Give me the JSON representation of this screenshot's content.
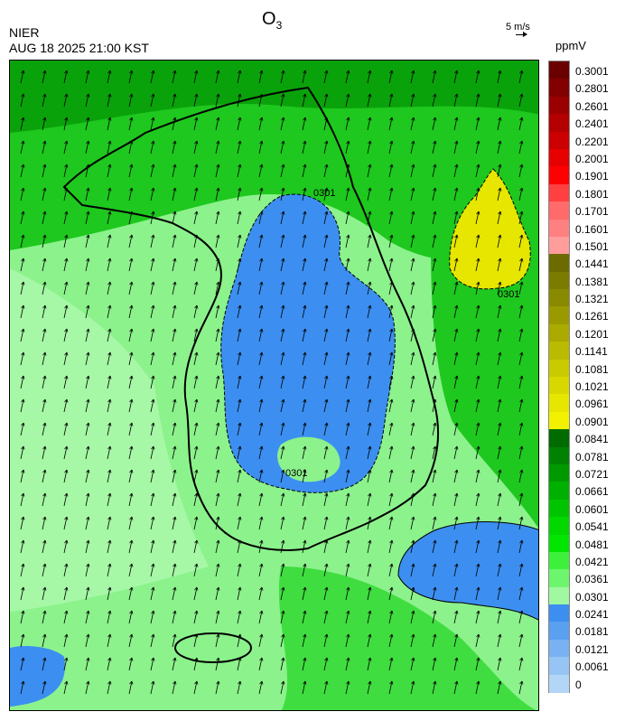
{
  "header": {
    "title": "O",
    "title_sub": "3",
    "org": "NIER",
    "timestamp": "AUG 18 2025 21:00 KST",
    "wind_scale": "5 m/s",
    "unit": "ppmV"
  },
  "contour_label": "0301",
  "legend": {
    "ticks": [
      "0.3001",
      "0.2801",
      "0.2601",
      "0.2401",
      "0.2201",
      "0.2001",
      "0.1901",
      "0.1801",
      "0.1701",
      "0.1601",
      "0.1501",
      "0.1441",
      "0.1381",
      "0.1321",
      "0.1261",
      "0.1201",
      "0.1141",
      "0.1081",
      "0.1021",
      "0.0961",
      "0.0901",
      "0.0841",
      "0.0781",
      "0.0721",
      "0.0661",
      "0.0601",
      "0.0541",
      "0.0481",
      "0.0421",
      "0.0361",
      "0.0301",
      "0.0241",
      "0.0181",
      "0.0121",
      "0.0061",
      "0"
    ],
    "colors": [
      "#6b0000",
      "#820000",
      "#9a0000",
      "#b40000",
      "#cc0000",
      "#e60000",
      "#ff0000",
      "#ff4040",
      "#ff6a6a",
      "#ff8080",
      "#ff9c9c",
      "#6b6b00",
      "#7b7b00",
      "#8a8a00",
      "#9a9a00",
      "#aaaa00",
      "#baba00",
      "#caca00",
      "#d8d800",
      "#e6e600",
      "#f2f200",
      "#006b00",
      "#008200",
      "#009a00",
      "#00b000",
      "#00c400",
      "#00d800",
      "#00e600",
      "#3cf03c",
      "#6ef56e",
      "#a0f8a0",
      "#3c8ff0",
      "#5aa0f0",
      "#78b2f2",
      "#96c4f4",
      "#b4d6f6"
    ]
  }
}
